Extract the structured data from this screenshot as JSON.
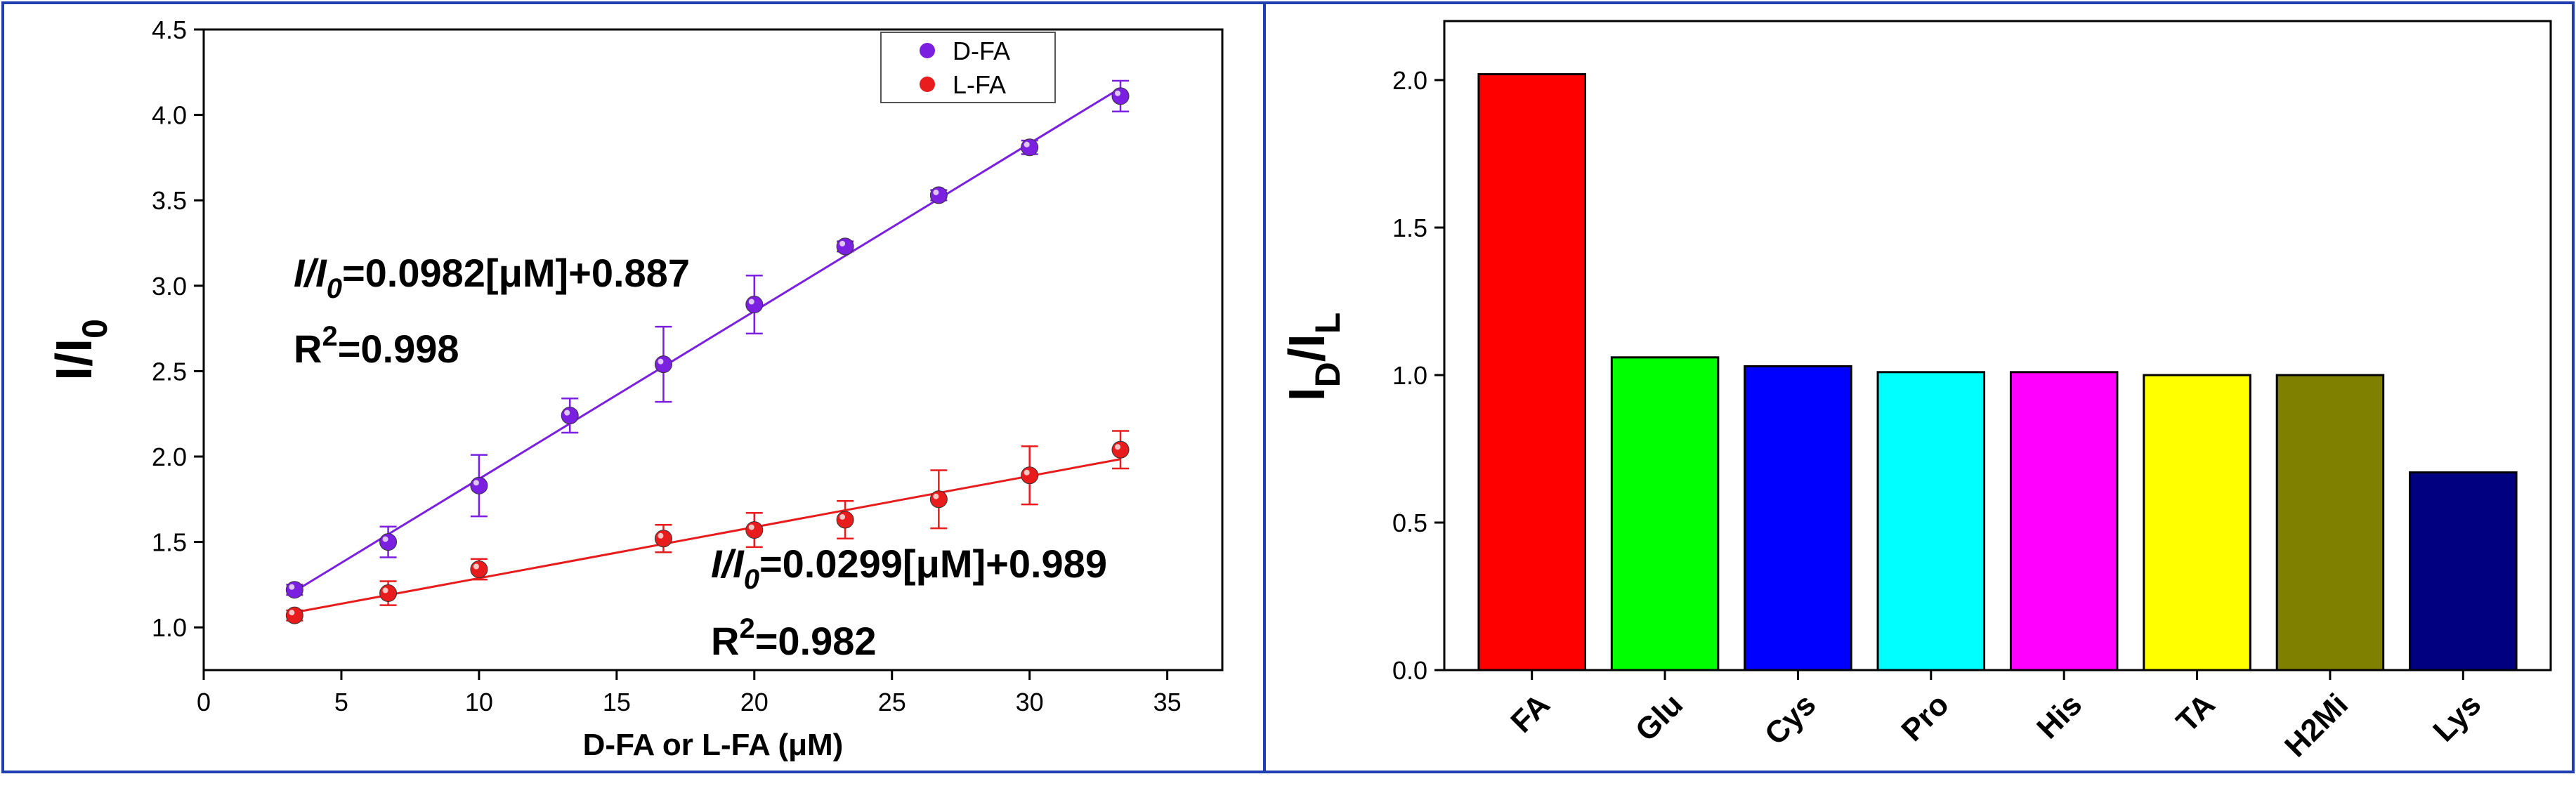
{
  "chart_data": [
    {
      "type": "scatter",
      "title": "",
      "xlabel": "D-FA or L-FA (μM)",
      "ylabel_main": "I/I",
      "ylabel_sub": "0",
      "xlim": [
        0,
        37
      ],
      "ylim": [
        0.75,
        4.5
      ],
      "xticks": [
        0,
        5,
        10,
        15,
        20,
        25,
        30,
        35
      ],
      "yticks": [
        1.0,
        1.5,
        2.0,
        2.5,
        3.0,
        3.5,
        4.0,
        4.5
      ],
      "legend_position": "top-right",
      "series": [
        {
          "name": "D-FA",
          "color": "#7b1fe0",
          "x": [
            3.3,
            6.7,
            10,
            13.3,
            16.7,
            20,
            23.3,
            26.7,
            30,
            33.3
          ],
          "y": [
            1.22,
            1.5,
            1.83,
            2.24,
            2.54,
            2.89,
            3.23,
            3.53,
            3.81,
            4.11
          ],
          "err": [
            0.03,
            0.09,
            0.18,
            0.1,
            0.22,
            0.17,
            0.03,
            0.03,
            0.04,
            0.09
          ],
          "fit": {
            "slope": 0.0982,
            "intercept": 0.887,
            "x_start": 3.3,
            "x_end": 33.3
          },
          "equation": {
            "prefix_main": "I/I",
            "prefix_sub": "0",
            "text": "=0.0982[μM]+0.887",
            "r2_label": "R",
            "r2_sup": "2",
            "r2_value": "=0.998"
          }
        },
        {
          "name": "L-FA",
          "color": "#e81c1c",
          "x": [
            3.3,
            6.7,
            10,
            16.7,
            20,
            23.3,
            26.7,
            30,
            33.3
          ],
          "y": [
            1.07,
            1.2,
            1.34,
            1.52,
            1.57,
            1.63,
            1.75,
            1.89,
            2.04
          ],
          "err": [
            0.03,
            0.07,
            0.06,
            0.08,
            0.1,
            0.11,
            0.17,
            0.17,
            0.11
          ],
          "fit": {
            "slope": 0.0299,
            "intercept": 0.989,
            "x_start": 3.3,
            "x_end": 33.3
          },
          "equation": {
            "prefix_main": "I/I",
            "prefix_sub": "0",
            "text": "=0.0299[μM]+0.989",
            "r2_label": "R",
            "r2_sup": "2",
            "r2_value": "=0.982"
          }
        }
      ]
    },
    {
      "type": "bar",
      "title": "",
      "xlabel": "",
      "ylabel_main": "I",
      "ylabel_sub1": "D",
      "ylabel_mid": "/I",
      "ylabel_sub2": "L",
      "ylim": [
        0,
        2.2
      ],
      "yticks": [
        0.0,
        0.5,
        1.0,
        1.5,
        2.0
      ],
      "categories": [
        "FA",
        "Glu",
        "Cys",
        "Pro",
        "His",
        "TA",
        "H2Mi",
        "Lys"
      ],
      "values": [
        2.02,
        1.06,
        1.03,
        1.01,
        1.01,
        1.0,
        1.0,
        0.67
      ],
      "colors": [
        "#ff0000",
        "#00ff00",
        "#0000ff",
        "#00ffff",
        "#ff00ff",
        "#ffff00",
        "#808000",
        "#000080"
      ]
    }
  ]
}
